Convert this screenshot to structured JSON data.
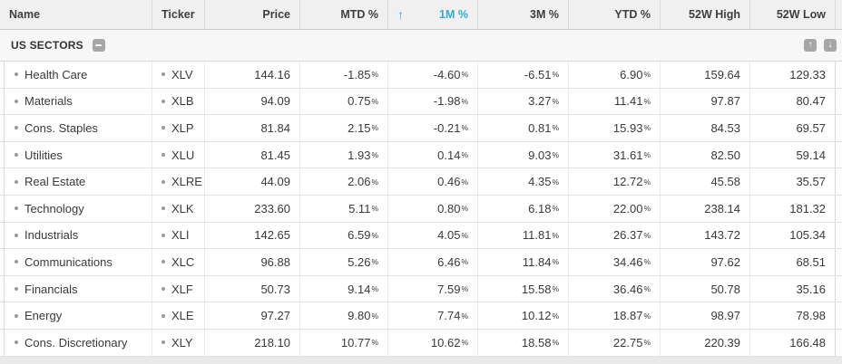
{
  "colors": {
    "accent": "#36a9dc",
    "positive": "#1d804c",
    "negative": "#d9514a"
  },
  "group": {
    "label": "US SECTORS"
  },
  "table": {
    "columns": [
      {
        "id": "name",
        "label": "Name",
        "align": "left"
      },
      {
        "id": "ticker",
        "label": "Ticker",
        "align": "left"
      },
      {
        "id": "price",
        "label": "Price",
        "align": "right"
      },
      {
        "id": "mtd",
        "label": "MTD %",
        "align": "right"
      },
      {
        "id": "m1",
        "label": "1M %",
        "align": "right",
        "sorted": "asc"
      },
      {
        "id": "m3",
        "label": "3M %",
        "align": "right"
      },
      {
        "id": "ytd",
        "label": "YTD %",
        "align": "right"
      },
      {
        "id": "high",
        "label": "52W High",
        "align": "right"
      },
      {
        "id": "low",
        "label": "52W Low",
        "align": "right"
      }
    ],
    "rows": [
      {
        "name": "Health Care",
        "ticker": "XLV",
        "price": "144.16",
        "mtd": "-1.85",
        "m1": "-4.60",
        "m3": "-6.51",
        "ytd": "6.90",
        "high": "159.64",
        "low": "129.33"
      },
      {
        "name": "Materials",
        "ticker": "XLB",
        "price": "94.09",
        "mtd": "0.75",
        "m1": "-1.98",
        "m3": "3.27",
        "ytd": "11.41",
        "high": "97.87",
        "low": "80.47"
      },
      {
        "name": "Cons. Staples",
        "ticker": "XLP",
        "price": "81.84",
        "mtd": "2.15",
        "m1": "-0.21",
        "m3": "0.81",
        "ytd": "15.93",
        "high": "84.53",
        "low": "69.57"
      },
      {
        "name": "Utilities",
        "ticker": "XLU",
        "price": "81.45",
        "mtd": "1.93",
        "m1": "0.14",
        "m3": "9.03",
        "ytd": "31.61",
        "high": "82.50",
        "low": "59.14"
      },
      {
        "name": "Real Estate",
        "ticker": "XLRE",
        "price": "44.09",
        "mtd": "2.06",
        "m1": "0.46",
        "m3": "4.35",
        "ytd": "12.72",
        "high": "45.58",
        "low": "35.57"
      },
      {
        "name": "Technology",
        "ticker": "XLK",
        "price": "233.60",
        "mtd": "5.11",
        "m1": "0.80",
        "m3": "6.18",
        "ytd": "22.00",
        "high": "238.14",
        "low": "181.32"
      },
      {
        "name": "Industrials",
        "ticker": "XLI",
        "price": "142.65",
        "mtd": "6.59",
        "m1": "4.05",
        "m3": "11.81",
        "ytd": "26.37",
        "high": "143.72",
        "low": "105.34"
      },
      {
        "name": "Communications",
        "ticker": "XLC",
        "price": "96.88",
        "mtd": "5.26",
        "m1": "6.46",
        "m3": "11.84",
        "ytd": "34.46",
        "high": "97.62",
        "low": "68.51"
      },
      {
        "name": "Financials",
        "ticker": "XLF",
        "price": "50.73",
        "mtd": "9.14",
        "m1": "7.59",
        "m3": "15.58",
        "ytd": "36.46",
        "high": "50.78",
        "low": "35.16"
      },
      {
        "name": "Energy",
        "ticker": "XLE",
        "price": "97.27",
        "mtd": "9.80",
        "m1": "7.74",
        "m3": "10.12",
        "ytd": "18.87",
        "high": "98.97",
        "low": "78.98"
      },
      {
        "name": "Cons. Discretionary",
        "ticker": "XLY",
        "price": "218.10",
        "mtd": "10.77",
        "m1": "10.62",
        "m3": "18.58",
        "ytd": "22.75",
        "high": "220.39",
        "low": "166.48"
      }
    ]
  },
  "icons": {
    "sort_asc": "↑",
    "move_up": "↑",
    "move_down": "↓",
    "collapse": "minus"
  }
}
